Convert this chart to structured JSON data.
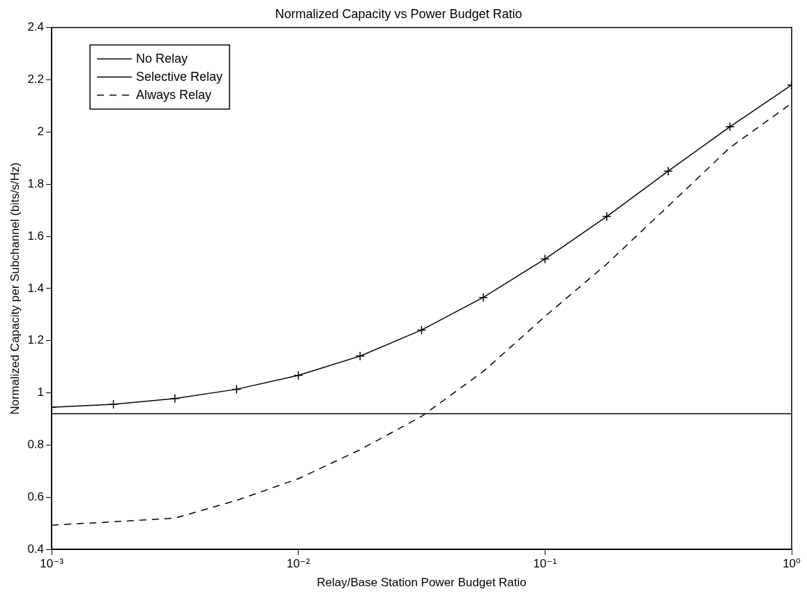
{
  "chart_data": {
    "type": "line",
    "title": "Normalized Capacity vs Power Budget Ratio",
    "xlabel": "Relay/Base Station Power Budget Ratio",
    "ylabel": "Normalized Capacity per Subchannel (bits/s/Hz)",
    "x": [
      0.001,
      0.00178,
      0.00316,
      0.00562,
      0.01,
      0.0178,
      0.0316,
      0.0562,
      0.1,
      0.178,
      0.316,
      0.562,
      1
    ],
    "series": [
      {
        "name": "No Relay",
        "color": "#000000",
        "line_style": "solid",
        "marker": "none",
        "values": [
          0.92,
          0.92,
          0.92,
          0.92,
          0.92,
          0.92,
          0.92,
          0.92,
          0.92,
          0.92,
          0.92,
          0.92,
          0.92
        ]
      },
      {
        "name": "Selective Relay",
        "color": "#000000",
        "line_style": "solid",
        "marker": "cross",
        "values": [
          0.945,
          0.956,
          0.978,
          1.014,
          1.067,
          1.141,
          1.241,
          1.366,
          1.513,
          1.676,
          1.85,
          2.02,
          2.18
        ]
      },
      {
        "name": "Always Relay",
        "color": "#000000",
        "line_style": "dashed",
        "marker": "none",
        "values": [
          0.493,
          0.506,
          0.52,
          0.588,
          0.671,
          0.782,
          0.91,
          1.082,
          1.293,
          1.494,
          1.716,
          1.94,
          2.11
        ]
      }
    ],
    "log": "x",
    "xlim": [
      0.001,
      1
    ],
    "xticks": [
      {
        "value": 0.001,
        "label": "10⁻³"
      },
      {
        "value": 0.01,
        "label": "10⁻²"
      },
      {
        "value": 0.1,
        "label": "10⁻¹"
      },
      {
        "value": 1,
        "label": "10⁰"
      }
    ],
    "ylim": [
      0.4,
      2.4
    ],
    "yticks": [
      0.4,
      0.6,
      0.8,
      1,
      1.2,
      1.4,
      1.6,
      1.8,
      2,
      2.2,
      2.4
    ],
    "grid": false,
    "legend": "top left"
  }
}
